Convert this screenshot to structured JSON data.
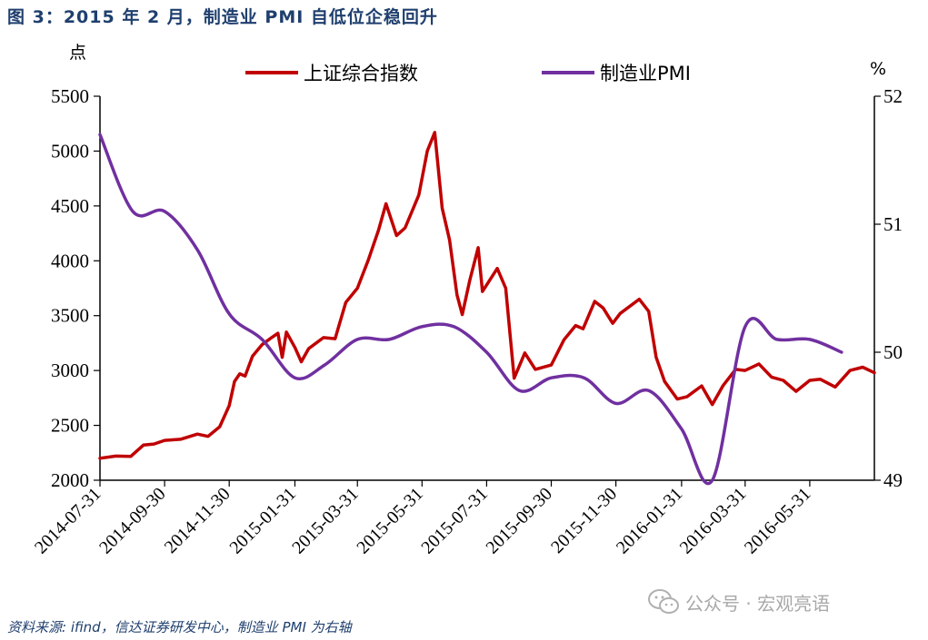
{
  "title": "图 3：2015 年 2 月，制造业 PMI 自低位企稳回升",
  "source": "资料来源: ifind，信达证券研发中心，制造业 PMI 为右轴",
  "watermark": "公众号 · 宏观亮语",
  "colors": {
    "index": "#c00000",
    "pmi": "#7030a0",
    "title": "#1f3f6e"
  },
  "chart_data": {
    "type": "line",
    "title": "2015 年 2 月，制造业 PMI 自低位企稳回升",
    "left_unit": "点",
    "right_unit": "%",
    "ylim": [
      2000,
      5500
    ],
    "y2lim": [
      49,
      52
    ],
    "left_ticks": [
      "2000",
      "2500",
      "3000",
      "3500",
      "4000",
      "4500",
      "5000",
      "5500"
    ],
    "right_ticks": [
      "49",
      "50",
      "51",
      "52"
    ],
    "x_ticks": [
      "2014-07-31",
      "2014-09-30",
      "2014-11-30",
      "2015-01-31",
      "2015-03-31",
      "2015-05-31",
      "2015-07-31",
      "2015-09-30",
      "2015-11-30",
      "2016-01-31",
      "2016-03-31",
      "2016-05-31"
    ],
    "x_range": [
      "2014-07-31",
      "2016-07-31"
    ],
    "series": [
      {
        "name": "上证综合指数",
        "axis": "left",
        "points": [
          [
            "2014-07-31",
            2200
          ],
          [
            "2014-08-15",
            2220
          ],
          [
            "2014-08-29",
            2217
          ],
          [
            "2014-09-10",
            2320
          ],
          [
            "2014-09-20",
            2330
          ],
          [
            "2014-09-30",
            2363
          ],
          [
            "2014-10-15",
            2373
          ],
          [
            "2014-10-31",
            2420
          ],
          [
            "2014-11-10",
            2400
          ],
          [
            "2014-11-21",
            2487
          ],
          [
            "2014-11-30",
            2680
          ],
          [
            "2014-12-05",
            2900
          ],
          [
            "2014-12-10",
            2970
          ],
          [
            "2014-12-15",
            2950
          ],
          [
            "2014-12-22",
            3130
          ],
          [
            "2014-12-31",
            3235
          ],
          [
            "2015-01-09",
            3300
          ],
          [
            "2015-01-15",
            3340
          ],
          [
            "2015-01-19",
            3120
          ],
          [
            "2015-01-23",
            3350
          ],
          [
            "2015-01-31",
            3210
          ],
          [
            "2015-02-06",
            3080
          ],
          [
            "2015-02-13",
            3200
          ],
          [
            "2015-02-27",
            3300
          ],
          [
            "2015-03-10",
            3290
          ],
          [
            "2015-03-20",
            3620
          ],
          [
            "2015-03-31",
            3750
          ],
          [
            "2015-04-10",
            4000
          ],
          [
            "2015-04-20",
            4280
          ],
          [
            "2015-04-27",
            4520
          ],
          [
            "2015-05-07",
            4230
          ],
          [
            "2015-05-15",
            4300
          ],
          [
            "2015-05-28",
            4600
          ],
          [
            "2015-06-05",
            5000
          ],
          [
            "2015-06-12",
            5170
          ],
          [
            "2015-06-19",
            4480
          ],
          [
            "2015-06-26",
            4190
          ],
          [
            "2015-07-03",
            3690
          ],
          [
            "2015-07-08",
            3510
          ],
          [
            "2015-07-15",
            3820
          ],
          [
            "2015-07-23",
            4120
          ],
          [
            "2015-07-27",
            3720
          ],
          [
            "2015-08-10",
            3930
          ],
          [
            "2015-08-18",
            3750
          ],
          [
            "2015-08-26",
            2930
          ],
          [
            "2015-09-05",
            3160
          ],
          [
            "2015-09-15",
            3010
          ],
          [
            "2015-09-30",
            3050
          ],
          [
            "2015-10-12",
            3280
          ],
          [
            "2015-10-23",
            3410
          ],
          [
            "2015-10-30",
            3380
          ],
          [
            "2015-11-10",
            3630
          ],
          [
            "2015-11-18",
            3570
          ],
          [
            "2015-11-27",
            3430
          ],
          [
            "2015-12-04",
            3520
          ],
          [
            "2015-12-22",
            3650
          ],
          [
            "2015-12-31",
            3540
          ],
          [
            "2016-01-07",
            3120
          ],
          [
            "2016-01-15",
            2900
          ],
          [
            "2016-01-27",
            2740
          ],
          [
            "2016-02-05",
            2760
          ],
          [
            "2016-02-19",
            2860
          ],
          [
            "2016-02-29",
            2690
          ],
          [
            "2016-03-10",
            2860
          ],
          [
            "2016-03-22",
            3010
          ],
          [
            "2016-03-31",
            3000
          ],
          [
            "2016-04-13",
            3060
          ],
          [
            "2016-04-25",
            2940
          ],
          [
            "2016-05-06",
            2910
          ],
          [
            "2016-05-18",
            2810
          ],
          [
            "2016-05-31",
            2910
          ],
          [
            "2016-06-10",
            2920
          ],
          [
            "2016-06-24",
            2850
          ],
          [
            "2016-07-08",
            3000
          ],
          [
            "2016-07-20",
            3030
          ],
          [
            "2016-07-31",
            2980
          ]
        ]
      },
      {
        "name": "制造业PMI",
        "axis": "right",
        "points": [
          [
            "2014-07-31",
            51.7
          ],
          [
            "2014-08-31",
            51.1
          ],
          [
            "2014-09-30",
            51.1
          ],
          [
            "2014-10-31",
            50.8
          ],
          [
            "2014-11-30",
            50.3
          ],
          [
            "2014-12-31",
            50.1
          ],
          [
            "2015-01-31",
            49.8
          ],
          [
            "2015-02-28",
            49.9
          ],
          [
            "2015-03-31",
            50.1
          ],
          [
            "2015-04-30",
            50.1
          ],
          [
            "2015-05-31",
            50.2
          ],
          [
            "2015-06-30",
            50.2
          ],
          [
            "2015-07-31",
            50.0
          ],
          [
            "2015-08-31",
            49.7
          ],
          [
            "2015-09-30",
            49.8
          ],
          [
            "2015-10-31",
            49.8
          ],
          [
            "2015-11-30",
            49.6
          ],
          [
            "2015-12-31",
            49.7
          ],
          [
            "2016-01-31",
            49.4
          ],
          [
            "2016-02-29",
            49.0
          ],
          [
            "2016-03-31",
            50.2
          ],
          [
            "2016-04-30",
            50.1
          ],
          [
            "2016-05-31",
            50.1
          ],
          [
            "2016-06-30",
            50.0
          ]
        ]
      }
    ]
  }
}
